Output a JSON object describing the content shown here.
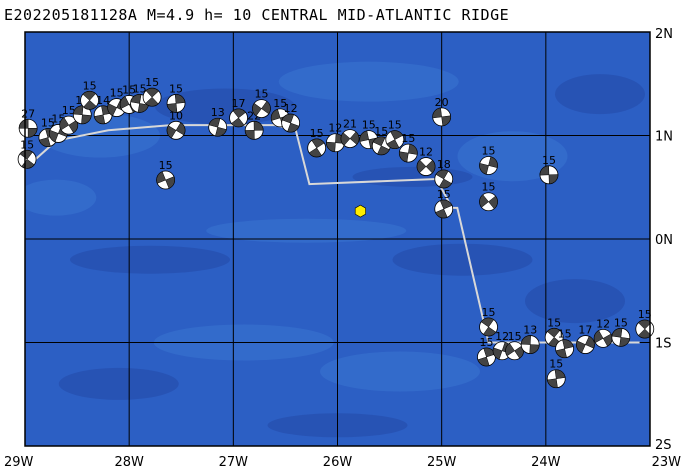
{
  "title": "E202205181128A M=4.9 h= 10 CENTRAL MID-ATLANTIC RIDGE",
  "lon_labels": [
    "29W",
    "28W",
    "27W",
    "26W",
    "25W",
    "24W",
    "23W"
  ],
  "lat_labels": [
    "2N",
    "1N",
    "0N",
    "1S",
    "2S"
  ],
  "lon_range": [
    -29,
    -23
  ],
  "lat_range": [
    -2,
    2
  ],
  "colors": {
    "ocean": "#2c5fc4",
    "deep": "#2449a8",
    "shallow": "#3a74d2",
    "grid": "#000000",
    "ridge": "#d8d8d8",
    "event": "#ffee00",
    "ball_light": "#ffffff",
    "ball_dark": "#444444"
  },
  "event": {
    "lon": -25.78,
    "lat": 0.27
  },
  "ridge": [
    [
      -29,
      0.68
    ],
    [
      -28.7,
      0.95
    ],
    [
      -28.2,
      1.05
    ],
    [
      -27.6,
      1.1
    ],
    [
      -26.6,
      1.1
    ],
    [
      -26.4,
      1.05
    ],
    [
      -26.27,
      0.53
    ],
    [
      -25.05,
      0.58
    ],
    [
      -24.9,
      0.3
    ],
    [
      -24.85,
      0.3
    ],
    [
      -24.55,
      -1.0
    ],
    [
      -23.1,
      -1.0
    ]
  ],
  "mechanisms": [
    {
      "lon": -28.97,
      "lat": 1.07,
      "label": "27"
    },
    {
      "lon": -28.98,
      "lat": 0.77,
      "label": "15"
    },
    {
      "lon": -28.78,
      "lat": 0.98,
      "label": "15"
    },
    {
      "lon": -28.68,
      "lat": 1.02,
      "label": "15"
    },
    {
      "lon": -28.58,
      "lat": 1.1,
      "label": "15"
    },
    {
      "lon": -28.45,
      "lat": 1.2,
      "label": "15"
    },
    {
      "lon": -28.38,
      "lat": 1.34,
      "label": "15"
    },
    {
      "lon": -28.25,
      "lat": 1.2,
      "label": "14"
    },
    {
      "lon": -28.12,
      "lat": 1.27,
      "label": "15"
    },
    {
      "lon": -28.0,
      "lat": 1.3,
      "label": "15"
    },
    {
      "lon": -27.9,
      "lat": 1.31,
      "label": "15"
    },
    {
      "lon": -27.78,
      "lat": 1.37,
      "label": "15"
    },
    {
      "lon": -27.55,
      "lat": 1.31,
      "label": "15"
    },
    {
      "lon": -27.55,
      "lat": 1.05,
      "label": "10"
    },
    {
      "lon": -27.65,
      "lat": 0.57,
      "label": "15"
    },
    {
      "lon": -27.15,
      "lat": 1.08,
      "label": "13"
    },
    {
      "lon": -26.95,
      "lat": 1.17,
      "label": "17"
    },
    {
      "lon": -26.8,
      "lat": 1.05,
      "label": "22"
    },
    {
      "lon": -26.73,
      "lat": 1.26,
      "label": "15"
    },
    {
      "lon": -26.55,
      "lat": 1.17,
      "label": "15"
    },
    {
      "lon": -26.45,
      "lat": 1.12,
      "label": "12"
    },
    {
      "lon": -26.2,
      "lat": 0.88,
      "label": "15"
    },
    {
      "lon": -26.02,
      "lat": 0.93,
      "label": "12"
    },
    {
      "lon": -25.88,
      "lat": 0.97,
      "label": "21"
    },
    {
      "lon": -25.7,
      "lat": 0.96,
      "label": "15"
    },
    {
      "lon": -25.58,
      "lat": 0.9,
      "label": "15"
    },
    {
      "lon": -25.45,
      "lat": 0.96,
      "label": "15"
    },
    {
      "lon": -25.32,
      "lat": 0.83,
      "label": "15"
    },
    {
      "lon": -25.15,
      "lat": 0.7,
      "label": "12"
    },
    {
      "lon": -25.0,
      "lat": 1.18,
      "label": "20"
    },
    {
      "lon": -24.98,
      "lat": 0.58,
      "label": "18"
    },
    {
      "lon": -24.98,
      "lat": 0.29,
      "label": "15"
    },
    {
      "lon": -24.55,
      "lat": 0.71,
      "label": "15"
    },
    {
      "lon": -24.55,
      "lat": 0.36,
      "label": "15"
    },
    {
      "lon": -23.97,
      "lat": 0.62,
      "label": "15"
    },
    {
      "lon": -24.55,
      "lat": -0.85,
      "label": "15"
    },
    {
      "lon": -24.57,
      "lat": -1.14,
      "label": "15"
    },
    {
      "lon": -24.42,
      "lat": -1.08,
      "label": "12"
    },
    {
      "lon": -24.3,
      "lat": -1.08,
      "label": "15"
    },
    {
      "lon": -24.15,
      "lat": -1.02,
      "label": "13"
    },
    {
      "lon": -23.92,
      "lat": -0.95,
      "label": "15"
    },
    {
      "lon": -23.82,
      "lat": -1.06,
      "label": "15"
    },
    {
      "lon": -23.62,
      "lat": -1.02,
      "label": "17"
    },
    {
      "lon": -23.45,
      "lat": -0.96,
      "label": "12"
    },
    {
      "lon": -23.28,
      "lat": -0.95,
      "label": "15"
    },
    {
      "lon": -23.05,
      "lat": -0.87,
      "label": "15"
    },
    {
      "lon": -23.9,
      "lat": -1.35,
      "label": "15"
    }
  ]
}
